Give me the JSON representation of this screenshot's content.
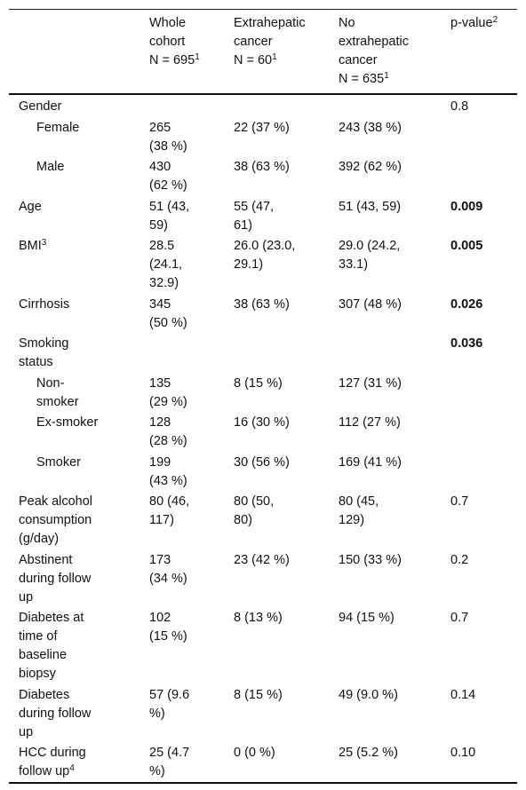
{
  "table": {
    "columns": [
      {
        "lines": [
          "Whole",
          "cohort",
          "N = 695"
        ],
        "note": "1"
      },
      {
        "lines": [
          "Extrahepatic",
          "cancer",
          "N = 60"
        ],
        "note": "1"
      },
      {
        "lines": [
          "No",
          "extrahepatic",
          "cancer",
          "N = 635"
        ],
        "note": "1"
      },
      {
        "lines": [
          "p-value"
        ],
        "note": "2"
      }
    ],
    "rows": [
      {
        "label": [
          "Gender"
        ],
        "p": "0.8"
      },
      {
        "label": [
          "Female"
        ],
        "indent": true,
        "values": [
          [
            "265",
            "(38 %)"
          ],
          [
            "22 (37 %)"
          ],
          [
            "243 (38 %)"
          ]
        ]
      },
      {
        "label": [
          "Male"
        ],
        "indent": true,
        "values": [
          [
            "430",
            "(62 %)"
          ],
          [
            "38 (63 %)"
          ],
          [
            "392 (62 %)"
          ]
        ]
      },
      {
        "label": [
          "Age"
        ],
        "values": [
          [
            "51 (43,",
            "59)"
          ],
          [
            "55 (47,",
            "61)"
          ],
          [
            "51 (43, 59)"
          ]
        ],
        "p": "0.009",
        "bold": true
      },
      {
        "label": [
          "BMI"
        ],
        "note": "3",
        "values": [
          [
            "28.5",
            "(24.1,",
            "32.9)"
          ],
          [
            "26.0 (23.0,",
            "29.1)"
          ],
          [
            "29.0 (24.2,",
            "33.1)"
          ]
        ],
        "p": "0.005",
        "bold": true
      },
      {
        "label": [
          "Cirrhosis"
        ],
        "values": [
          [
            "345",
            "(50 %)"
          ],
          [
            "38 (63 %)"
          ],
          [
            "307 (48 %)"
          ]
        ],
        "p": "0.026",
        "bold": true
      },
      {
        "label": [
          "Smoking",
          "status"
        ],
        "p": "0.036",
        "bold": true
      },
      {
        "label": [
          "Non-",
          "smoker"
        ],
        "indent": true,
        "values": [
          [
            "135",
            "(29 %)"
          ],
          [
            "8 (15 %)"
          ],
          [
            "127 (31 %)"
          ]
        ]
      },
      {
        "label": [
          "Ex-smoker"
        ],
        "indent": true,
        "values": [
          [
            "128",
            "(28 %)"
          ],
          [
            "16 (30 %)"
          ],
          [
            "112 (27 %)"
          ]
        ]
      },
      {
        "label": [
          "Smoker"
        ],
        "indent": true,
        "values": [
          [
            "199",
            "(43 %)"
          ],
          [
            "30 (56 %)"
          ],
          [
            "169 (41 %)"
          ]
        ]
      },
      {
        "label": [
          "Peak alcohol",
          "consumption",
          "(g/day)"
        ],
        "values": [
          [
            "80 (46,",
            "117)"
          ],
          [
            "80 (50,",
            "80)"
          ],
          [
            "80 (45,",
            "129)"
          ]
        ],
        "p": "0.7"
      },
      {
        "label": [
          "Abstinent",
          "during follow",
          "up"
        ],
        "values": [
          [
            "173",
            "(34 %)"
          ],
          [
            "23 (42 %)"
          ],
          [
            "150 (33 %)"
          ]
        ],
        "p": "0.2"
      },
      {
        "label": [
          "Diabetes at",
          "time of",
          "baseline",
          "biopsy"
        ],
        "values": [
          [
            "102",
            "(15 %)"
          ],
          [
            "8 (13 %)"
          ],
          [
            "94 (15 %)"
          ]
        ],
        "p": "0.7"
      },
      {
        "label": [
          "Diabetes",
          "during follow",
          "up"
        ],
        "values": [
          [
            "57 (9.6",
            "%)"
          ],
          [
            "8 (15 %)"
          ],
          [
            "49 (9.0 %)"
          ]
        ],
        "p": "0.14"
      },
      {
        "label": [
          "HCC during",
          "follow up"
        ],
        "note": "4",
        "values": [
          [
            "25 (4.7",
            "%)"
          ],
          [
            "0 (0 %)"
          ],
          [
            "25 (5.2 %)"
          ]
        ],
        "p": "0.10"
      }
    ]
  }
}
